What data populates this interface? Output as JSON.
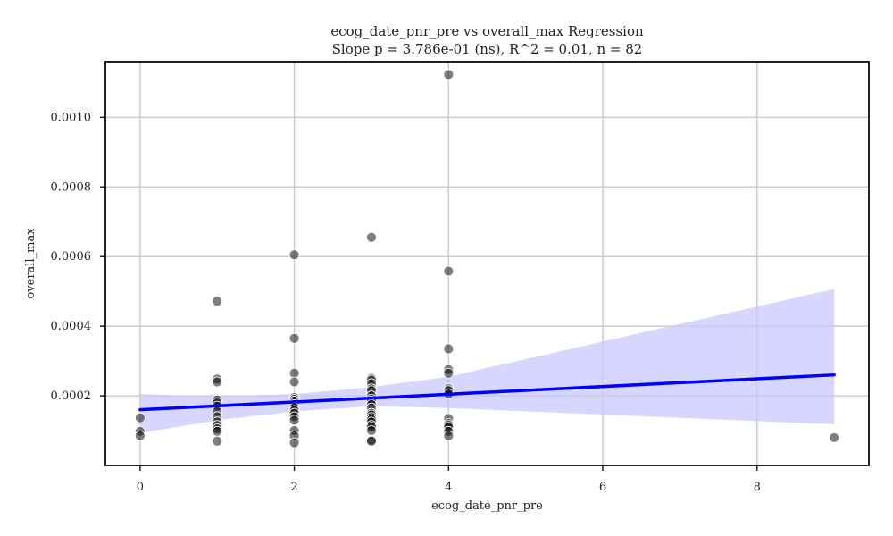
{
  "chart_data": {
    "type": "scatter",
    "title": "ecog_date_pnr_pre vs overall_max Regression",
    "subtitle": "Slope p = 3.786e-01 (ns), R^2 = 0.01, n = 82",
    "xlabel": "ecog_date_pnr_pre",
    "ylabel": "overall_max",
    "xlim": [
      -0.45,
      9.45
    ],
    "ylim": [
      0.0,
      0.00116
    ],
    "xticks": [
      0,
      2,
      4,
      6,
      8
    ],
    "xtick_labels": [
      "0",
      "2",
      "4",
      "6",
      "8"
    ],
    "yticks": [
      0.0002,
      0.0004,
      0.0006,
      0.0008,
      0.001
    ],
    "ytick_labels": [
      "0.0002",
      "0.0004",
      "0.0006",
      "0.0008",
      "0.0010"
    ],
    "grid": true,
    "colors": {
      "points": "#555555",
      "regression_line": "#0000ff",
      "confidence_band": "#c8c8ff"
    },
    "points": [
      {
        "x": 0,
        "y": 0.000137
      },
      {
        "x": 0,
        "y": 9.8e-05
      },
      {
        "x": 0,
        "y": 8.5e-05
      },
      {
        "x": 1,
        "y": 0.000472
      },
      {
        "x": 1,
        "y": 0.000248
      },
      {
        "x": 1,
        "y": 0.00024
      },
      {
        "x": 1,
        "y": 0.000188
      },
      {
        "x": 1,
        "y": 0.00018
      },
      {
        "x": 1,
        "y": 0.00017
      },
      {
        "x": 1,
        "y": 0.000155
      },
      {
        "x": 1,
        "y": 0.00014
      },
      {
        "x": 1,
        "y": 0.000125
      },
      {
        "x": 1,
        "y": 0.000115
      },
      {
        "x": 1,
        "y": 0.000105
      },
      {
        "x": 1,
        "y": 9.8e-05
      },
      {
        "x": 1,
        "y": 7e-05
      },
      {
        "x": 2,
        "y": 0.000605
      },
      {
        "x": 2,
        "y": 0.000365
      },
      {
        "x": 2,
        "y": 0.000265
      },
      {
        "x": 2,
        "y": 0.00024
      },
      {
        "x": 2,
        "y": 0.000195
      },
      {
        "x": 2,
        "y": 0.00019
      },
      {
        "x": 2,
        "y": 0.000185
      },
      {
        "x": 2,
        "y": 0.00018
      },
      {
        "x": 2,
        "y": 0.000175
      },
      {
        "x": 2,
        "y": 0.000165
      },
      {
        "x": 2,
        "y": 0.000158
      },
      {
        "x": 2,
        "y": 0.00015
      },
      {
        "x": 2,
        "y": 0.00014
      },
      {
        "x": 2,
        "y": 0.00013
      },
      {
        "x": 2,
        "y": 0.0001
      },
      {
        "x": 2,
        "y": 8.5e-05
      },
      {
        "x": 2,
        "y": 6.5e-05
      },
      {
        "x": 3,
        "y": 0.000655
      },
      {
        "x": 3,
        "y": 0.00025
      },
      {
        "x": 3,
        "y": 0.000245
      },
      {
        "x": 3,
        "y": 0.000235
      },
      {
        "x": 3,
        "y": 0.00022
      },
      {
        "x": 3,
        "y": 0.000215
      },
      {
        "x": 3,
        "y": 0.0002
      },
      {
        "x": 3,
        "y": 0.00019
      },
      {
        "x": 3,
        "y": 0.000185
      },
      {
        "x": 3,
        "y": 0.000175
      },
      {
        "x": 3,
        "y": 0.000165
      },
      {
        "x": 3,
        "y": 0.00015
      },
      {
        "x": 3,
        "y": 0.000145
      },
      {
        "x": 3,
        "y": 0.000138
      },
      {
        "x": 3,
        "y": 0.000132
      },
      {
        "x": 3,
        "y": 0.000125
      },
      {
        "x": 3,
        "y": 0.000115
      },
      {
        "x": 3,
        "y": 0.00011
      },
      {
        "x": 3,
        "y": 0.0001
      },
      {
        "x": 3,
        "y": 7.2e-05
      },
      {
        "x": 3,
        "y": 7e-05
      },
      {
        "x": 4,
        "y": 0.001123
      },
      {
        "x": 4,
        "y": 0.000558
      },
      {
        "x": 4,
        "y": 0.000335
      },
      {
        "x": 4,
        "y": 0.000275
      },
      {
        "x": 4,
        "y": 0.000265
      },
      {
        "x": 4,
        "y": 0.00022
      },
      {
        "x": 4,
        "y": 0.000215
      },
      {
        "x": 4,
        "y": 0.000205
      },
      {
        "x": 4,
        "y": 0.000135
      },
      {
        "x": 4,
        "y": 0.00012
      },
      {
        "x": 4,
        "y": 0.000115
      },
      {
        "x": 4,
        "y": 0.00011
      },
      {
        "x": 4,
        "y": 9.8e-05
      },
      {
        "x": 4,
        "y": 8.5e-05
      },
      {
        "x": 9,
        "y": 8e-05
      }
    ],
    "regression": {
      "x": [
        0,
        9
      ],
      "y": [
        0.00016,
        0.00026
      ]
    },
    "confidence_band": {
      "x": [
        0,
        1,
        2,
        3,
        4,
        9
      ],
      "upper": [
        0.000205,
        0.000198,
        0.000205,
        0.000225,
        0.000255,
        0.000507
      ],
      "lower": [
        9.3e-05,
        0.00013,
        0.000155,
        0.00017,
        0.000165,
        0.000118
      ]
    }
  }
}
